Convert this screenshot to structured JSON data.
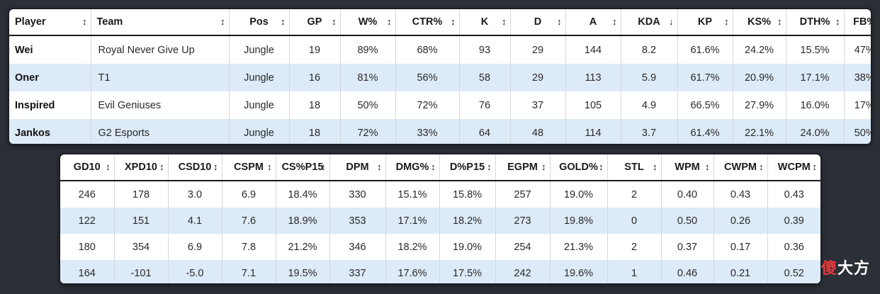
{
  "table_top": {
    "headers": [
      "Player",
      "Team",
      "Pos",
      "GP",
      "W%",
      "CTR%",
      "K",
      "D",
      "A",
      "KDA",
      "KP",
      "KS%",
      "DTH%",
      "FB%"
    ],
    "rows": [
      [
        "Wei",
        "Royal Never Give Up",
        "Jungle",
        "19",
        "89%",
        "68%",
        "93",
        "29",
        "144",
        "8.2",
        "61.6%",
        "24.2%",
        "15.5%",
        "47%"
      ],
      [
        "Oner",
        "T1",
        "Jungle",
        "16",
        "81%",
        "56%",
        "58",
        "29",
        "113",
        "5.9",
        "61.7%",
        "20.9%",
        "17.1%",
        "38%"
      ],
      [
        "Inspired",
        "Evil Geniuses",
        "Jungle",
        "18",
        "50%",
        "72%",
        "76",
        "37",
        "105",
        "4.9",
        "66.5%",
        "27.9%",
        "16.0%",
        "17%"
      ],
      [
        "Jankos",
        "G2 Esports",
        "Jungle",
        "18",
        "72%",
        "33%",
        "64",
        "48",
        "114",
        "3.7",
        "61.4%",
        "22.1%",
        "24.0%",
        "50%"
      ]
    ]
  },
  "table_bottom": {
    "headers": [
      "GD10",
      "XPD10",
      "CSD10",
      "CSPM",
      "CS%P15",
      "DPM",
      "DMG%",
      "D%P15",
      "EGPM",
      "GOLD%",
      "STL",
      "WPM",
      "CWPM",
      "WCPM"
    ],
    "rows": [
      [
        "246",
        "178",
        "3.0",
        "6.9",
        "18.4%",
        "330",
        "15.1%",
        "15.8%",
        "257",
        "19.0%",
        "2",
        "0.40",
        "0.43",
        "0.43"
      ],
      [
        "122",
        "151",
        "4.1",
        "7.6",
        "18.9%",
        "353",
        "17.1%",
        "18.2%",
        "273",
        "19.8%",
        "0",
        "0.50",
        "0.26",
        "0.39"
      ],
      [
        "180",
        "354",
        "6.9",
        "7.8",
        "21.2%",
        "346",
        "18.2%",
        "19.0%",
        "254",
        "21.3%",
        "2",
        "0.37",
        "0.17",
        "0.36"
      ],
      [
        "164",
        "-101",
        "-5.0",
        "7.1",
        "19.5%",
        "337",
        "17.6%",
        "17.5%",
        "242",
        "19.6%",
        "1",
        "0.46",
        "0.21",
        "0.52"
      ]
    ]
  },
  "sort_icon": "sort-updown-icon",
  "sort_icon_active": "sort-down-icon",
  "watermark": {
    "first": "傻",
    "rest": "大方"
  },
  "colors": {
    "row_alt": "#ddeaf7",
    "background": "#2b2f36"
  }
}
